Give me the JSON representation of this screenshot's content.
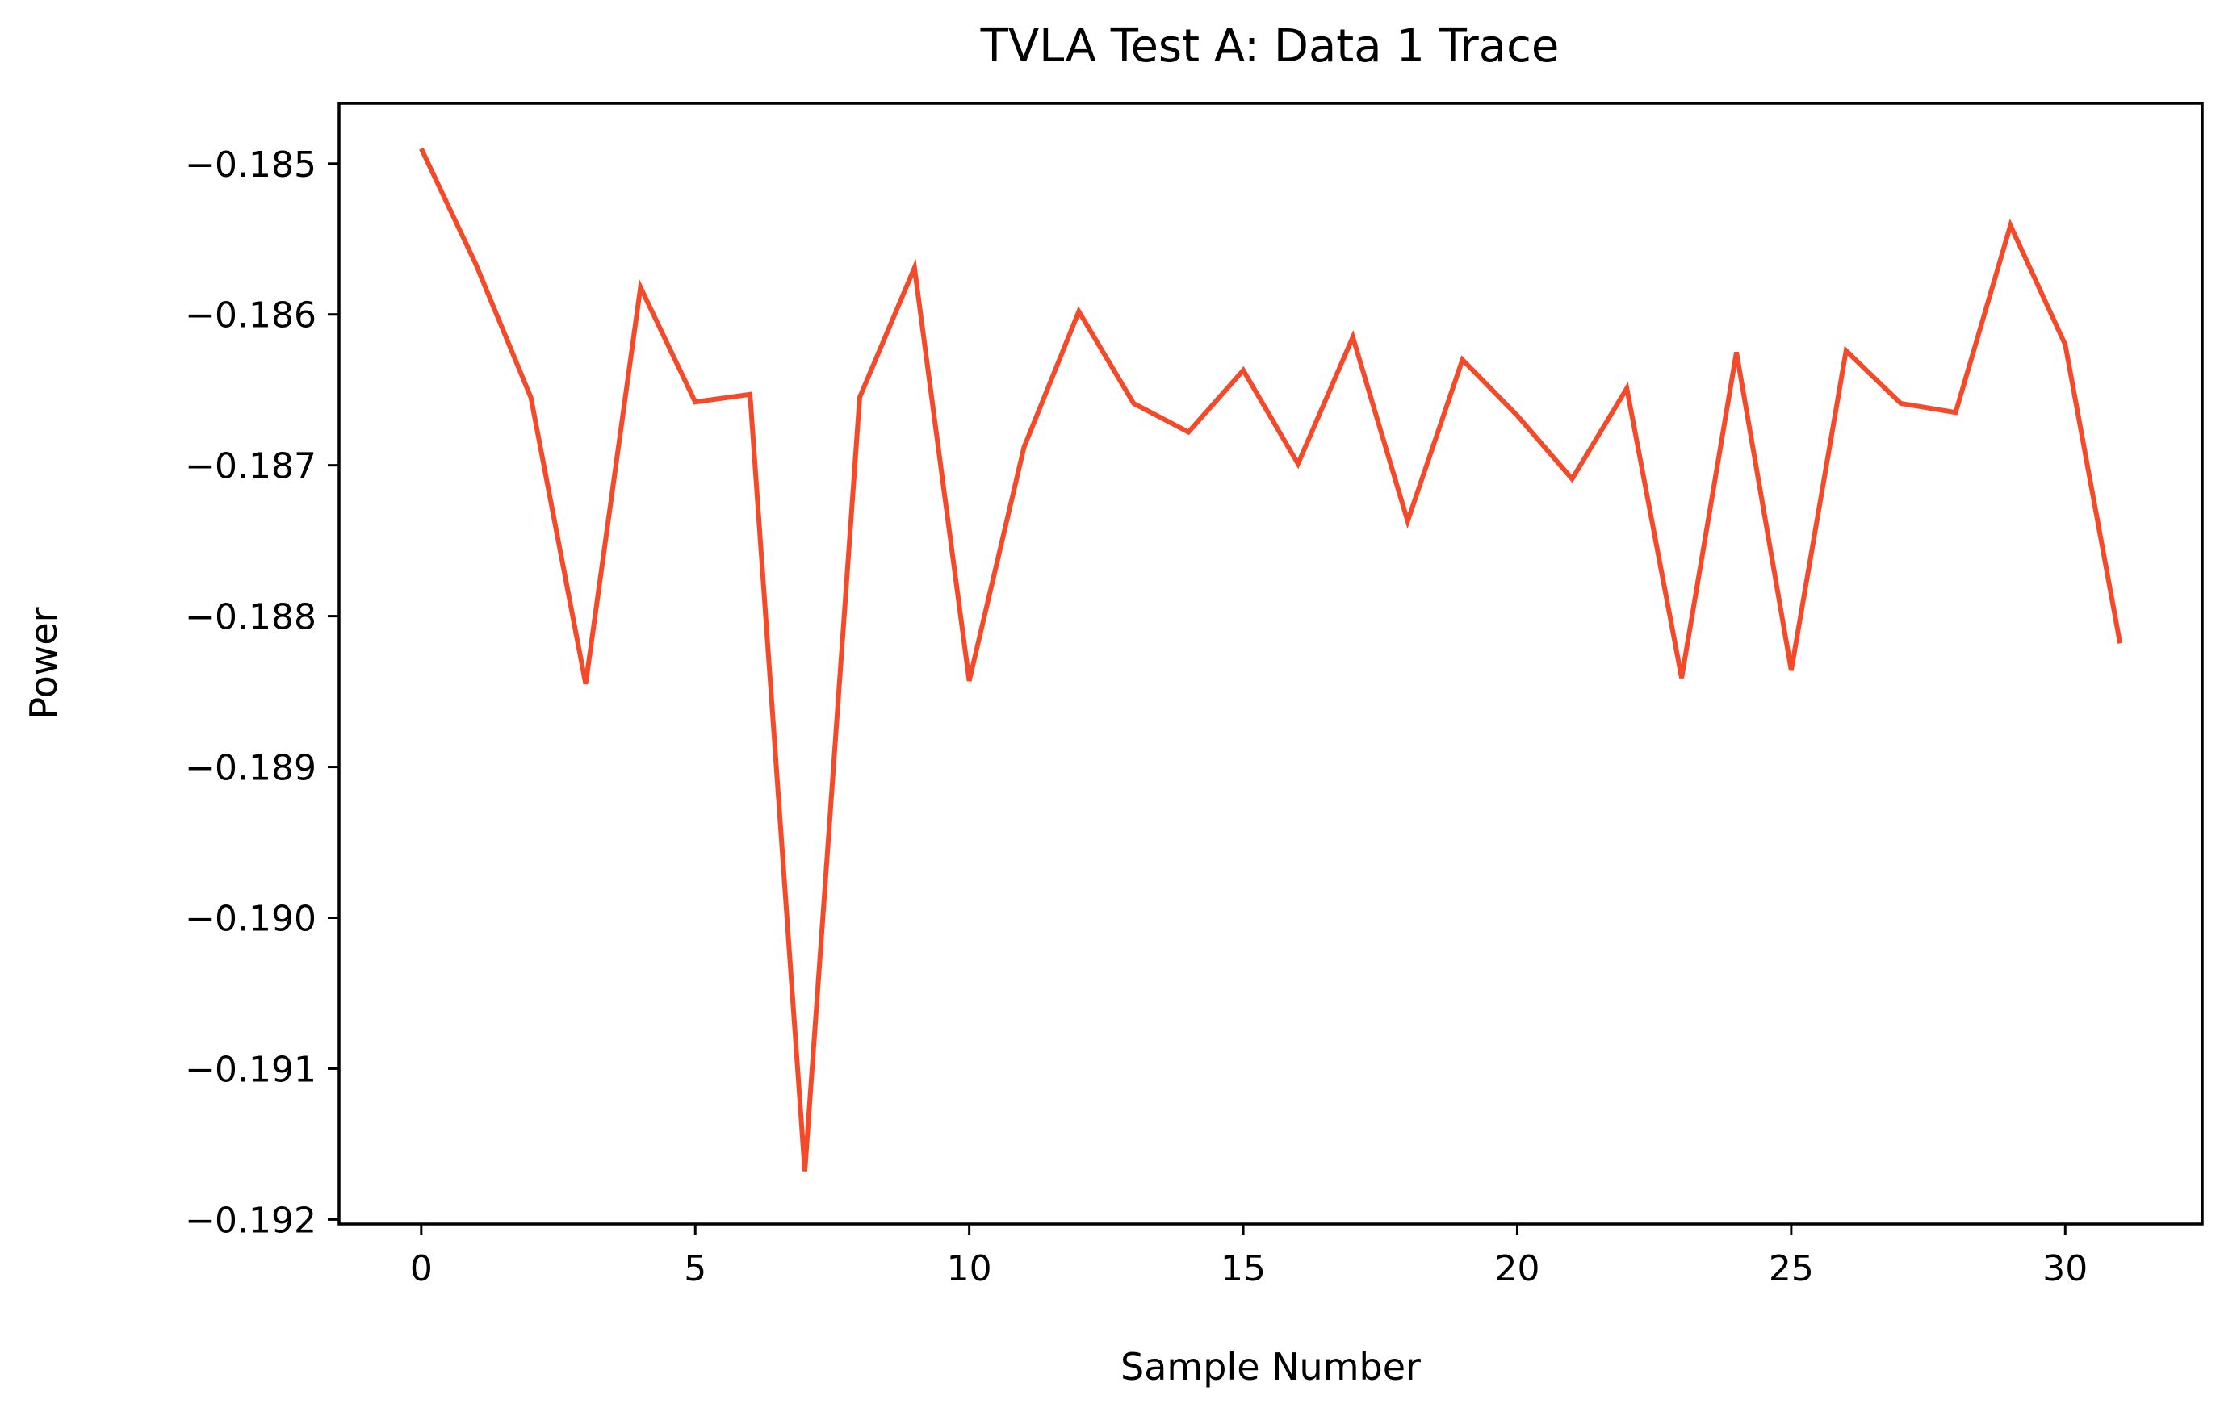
{
  "chart_data": {
    "type": "line",
    "title": "TVLA Test A: Data 1 Trace",
    "xlabel": "Sample Number",
    "ylabel": "Power",
    "xlim": [
      -1.5,
      32.5
    ],
    "ylim": [
      -0.19203,
      -0.1846
    ],
    "grid": false,
    "legend": "none",
    "x_ticks": [
      0,
      5,
      10,
      15,
      20,
      25,
      30
    ],
    "x_tick_labels": [
      "0",
      "5",
      "10",
      "15",
      "20",
      "25",
      "30"
    ],
    "y_ticks": [
      -0.185,
      -0.186,
      -0.187,
      -0.188,
      -0.189,
      -0.19,
      -0.191,
      -0.192
    ],
    "y_tick_labels": [
      "−0.185",
      "−0.186",
      "−0.187",
      "−0.188",
      "−0.189",
      "−0.190",
      "−0.191",
      "−0.192"
    ],
    "series": [
      {
        "color": "#f44a2a",
        "x": [
          0,
          1,
          2,
          3,
          4,
          5,
          6,
          7,
          8,
          9,
          10,
          11,
          12,
          13,
          14,
          15,
          16,
          17,
          18,
          19,
          20,
          21,
          22,
          23,
          24,
          25,
          26,
          27,
          28,
          29,
          30,
          31
        ],
        "y": [
          -0.1849,
          -0.18567,
          -0.18655,
          -0.18845,
          -0.18582,
          -0.18658,
          -0.18653,
          -0.19168,
          -0.18655,
          -0.18569,
          -0.18843,
          -0.18688,
          -0.18598,
          -0.18659,
          -0.18678,
          -0.18637,
          -0.18699,
          -0.18615,
          -0.18737,
          -0.1863,
          -0.18667,
          -0.18709,
          -0.18649,
          -0.18841,
          -0.18625,
          -0.18836,
          -0.18624,
          -0.18659,
          -0.18665,
          -0.18541,
          -0.1862,
          -0.18818
        ]
      }
    ]
  }
}
